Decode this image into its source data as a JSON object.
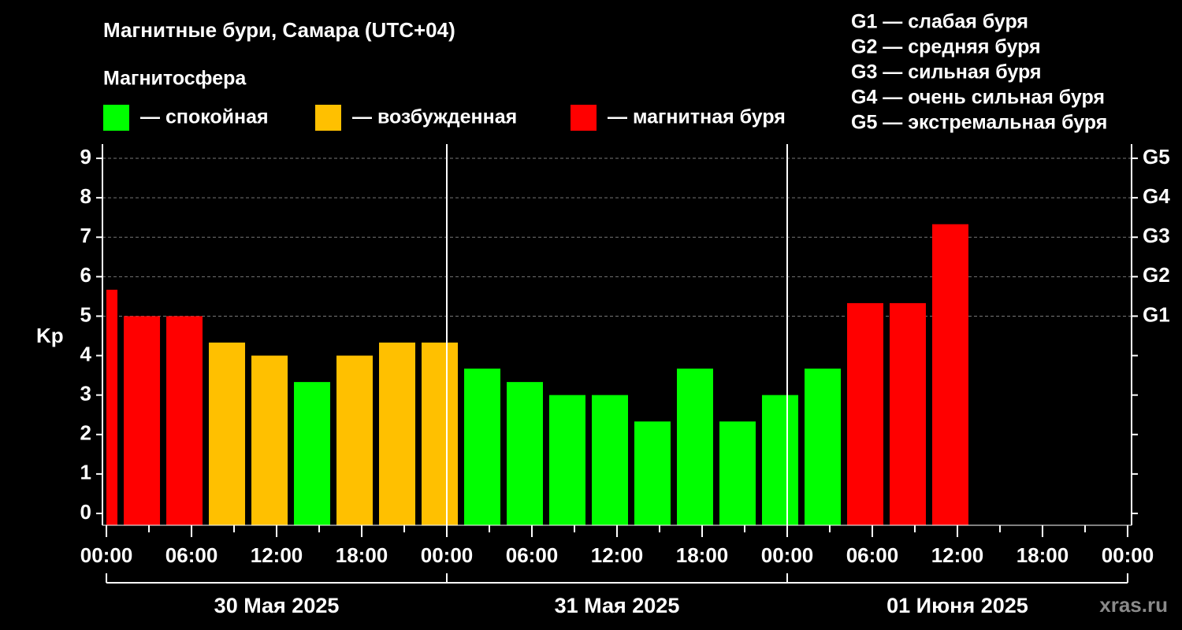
{
  "chart_data": {
    "type": "histogram",
    "title": "Магнитные бури, Самара (UTC+04)",
    "subtitle": "Магнитосфера",
    "legend": [
      {
        "label": "— спокойная",
        "color": "#00ff00"
      },
      {
        "label": "— возбужденная",
        "color": "#ffc000"
      },
      {
        "label": "— магнитная буря",
        "color": "#ff0000"
      }
    ],
    "scale_notes": [
      "G1 — слабая буря",
      "G2 — средняя буря",
      "G3 — сильная буря",
      "G4 — очень сильная буря",
      "G5 — экстремальная буря"
    ],
    "y_label": "Kp",
    "bins": [
      -2,
      1,
      4,
      7,
      10,
      13,
      16,
      19,
      22,
      25,
      28,
      31,
      34,
      37,
      40,
      43,
      46,
      49,
      52,
      55,
      58,
      61
    ],
    "values": [
      5.67,
      5,
      5,
      4.33,
      4,
      3.33,
      4,
      4.33,
      4.33,
      3.67,
      3.33,
      3,
      3,
      2.33,
      3.67,
      2.33,
      3,
      3.67,
      5.33,
      5.33,
      7.33
    ],
    "colors": [
      "#ff0000",
      "#ff0000",
      "#ff0000",
      "#ffc000",
      "#ffc000",
      "#00ff00",
      "#ffc000",
      "#ffc000",
      "#ffc000",
      "#00ff00",
      "#00ff00",
      "#00ff00",
      "#00ff00",
      "#00ff00",
      "#00ff00",
      "#00ff00",
      "#00ff00",
      "#00ff00",
      "#ff0000",
      "#ff0000",
      "#ff0000"
    ],
    "xlim": [
      -0.28,
      72.28
    ],
    "xticks": [
      {
        "value": 0,
        "label": "00:00"
      },
      {
        "value": 6,
        "label": "06:00"
      },
      {
        "value": 12,
        "label": "12:00"
      },
      {
        "value": 18,
        "label": "18:00"
      },
      {
        "value": 24,
        "label": "00:00"
      },
      {
        "value": 30,
        "label": "06:00"
      },
      {
        "value": 36,
        "label": "12:00"
      },
      {
        "value": 42,
        "label": "18:00"
      },
      {
        "value": 48,
        "label": "00:00"
      },
      {
        "value": 54,
        "label": "06:00"
      },
      {
        "value": 60,
        "label": "12:00"
      },
      {
        "value": 66,
        "label": "18:00"
      },
      {
        "value": 72,
        "label": "00:00"
      }
    ],
    "xminor": [
      3,
      9,
      15,
      21,
      27,
      33,
      39,
      45,
      51,
      57,
      63,
      69
    ],
    "days": [
      {
        "start": 0,
        "end": 24,
        "label": "30 Мая 2025"
      },
      {
        "start": 24,
        "end": 48,
        "label": "31 Мая 2025"
      },
      {
        "start": 48,
        "end": 72,
        "label": "01 Июня 2025"
      }
    ],
    "ylim": [
      -0.3,
      9.36
    ],
    "yticks": [
      0,
      1,
      2,
      3,
      4,
      5,
      6,
      7,
      8,
      9
    ],
    "y2ticks": [
      {
        "value": 5,
        "label": "G1"
      },
      {
        "value": 6,
        "label": "G2"
      },
      {
        "value": 7,
        "label": "G3"
      },
      {
        "value": 8,
        "label": "G4"
      },
      {
        "value": 9,
        "label": "G5"
      }
    ],
    "grid": true,
    "watermark": "xras.ru"
  }
}
